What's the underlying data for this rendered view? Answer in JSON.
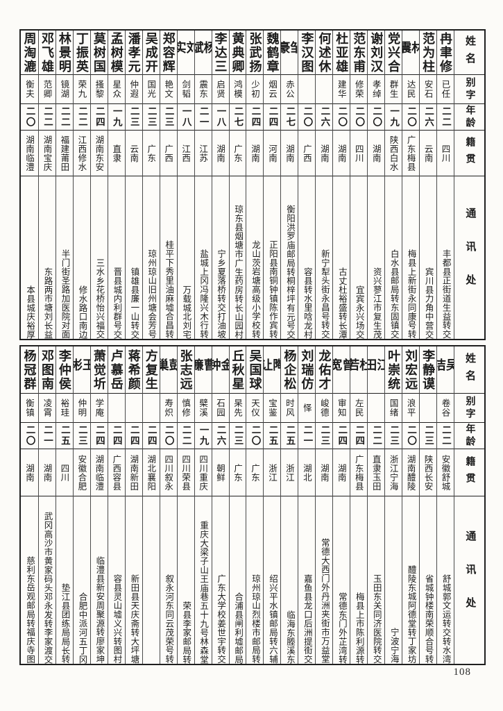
{
  "page": {
    "number": "108"
  },
  "colors": {
    "paper": "#fbfaf7",
    "ink": "#1c1c1c",
    "border": "#1f1f1f"
  },
  "headers": {
    "name": "姓名",
    "courtesy": "别字",
    "age": "年龄",
    "native": "籍贯",
    "address": "通讯处"
  },
  "tables": [
    {
      "entries": [
        {
          "name": "冉聿修",
          "courtesy": "已任",
          "age": "二二",
          "native": "四川",
          "address": "丰都县正街道生益转交"
        },
        {
          "name": "范为柱",
          "courtesy": "安石",
          "age": "二六",
          "native": "云南",
          "address": "宾川县力角中营交"
        },
        {
          "name": "林震",
          "courtesy": "达民",
          "age": "二〇",
          "native": "广东梅县",
          "address": "梅县上新街永同康号转"
        },
        {
          "name": "党兴合",
          "courtesy": "群生",
          "age": "一九",
          "native": "陕西白水",
          "address": "白水县邮局转东固镇交"
        },
        {
          "name": "谢刘汉",
          "courtesy": "孝绰",
          "age": "二〇",
          "native": "湖南",
          "address": "资兴蓼江市复生茂"
        },
        {
          "name": "范东甫",
          "courtesy": "修荣",
          "age": "二〇",
          "native": "四川",
          "address": "宜宾永兴场交"
        },
        {
          "name": "杜亚雄",
          "courtesy": "建华",
          "age": "二〇",
          "native": "湖南",
          "address": "古丈杜裕盛转长潭"
        },
        {
          "name": "何述休",
          "courtesy": "",
          "age": "二六",
          "native": "湖南",
          "address": "新宁犁头街永昌号转交"
        },
        {
          "name": "李汉图",
          "courtesy": "",
          "age": "二〇",
          "native": "广西",
          "address": "容县转水里唅龙村"
        },
        {
          "name": "邹豪",
          "courtesy": "赤公",
          "age": "二七",
          "native": "湖南",
          "address": "衡阳洪罗庙邮局转桐梓坪有元号交"
        },
        {
          "name": "魏鹤章",
          "courtesy": "烟云",
          "age": "二四",
          "native": "河南",
          "address": "正阳县南铜钟镇陈作宾转"
        },
        {
          "name": "张武扬",
          "courtesy": "少初",
          "age": "二四",
          "native": "湖南",
          "address": "龙山茨岩塘高级小学校转"
        },
        {
          "name": "黄典卿",
          "courtesy": "鸿模",
          "age": "二七",
          "native": "广东",
          "address": "琼东县烟塘市广生药房转长山园村"
        },
        {
          "name": "李达三",
          "courtesy": "启贤",
          "age": "一八",
          "native": "湖南",
          "address": "宁乡夏落桥转交打油坡"
        },
        {
          "name": "杨斌",
          "courtesy": "震东",
          "age": "二一",
          "native": "江苏",
          "address": "盐城上冈冯隆兴木行转"
        },
        {
          "name": "刘实",
          "courtesy": "剑韬",
          "age": "一八",
          "native": "江西",
          "address": "万载城北刘宅"
        },
        {
          "name": "郑容辉",
          "courtesy": "艳文",
          "age": "二三",
          "native": "广西",
          "address": "桂平下秀里油麻墟合昌转"
        },
        {
          "name": "吴成开",
          "courtesy": "国光",
          "age": "二三",
          "native": "广东",
          "address": "琼州琼山旧州塘会芳号"
        },
        {
          "name": "潘孝元",
          "courtesy": "仲遐",
          "age": "二三",
          "native": "云南",
          "address": "镇雄县廉一山转交"
        },
        {
          "name": "孟树模",
          "courtesy": "星众",
          "age": "一九",
          "native": "直隶",
          "address": "晋县城内利群号交"
        },
        {
          "name": "莫树国",
          "courtesy": "搔黎",
          "age": "二四",
          "native": "湖南东安",
          "address": "三水乡花桥怡兴福交"
        },
        {
          "name": "丁振英",
          "courtesy": "荣九",
          "age": "二二",
          "native": "江西修水",
          "address": "修水路口南边"
        },
        {
          "name": "林景明",
          "courtesy": "镜湖",
          "age": "二二",
          "native": "福建莆田",
          "address": "半门街圣路加医院对面"
        },
        {
          "name": "邓飞雄",
          "courtesy": "范卿",
          "age": "二二",
          "native": "湖南宝庆",
          "address": "东路两市塘刘长益"
        },
        {
          "name": "周淘漉",
          "courtesy": "衡夫",
          "age": "二〇",
          "native": "湖南临澧",
          "address": "本县城庆裕厚"
        }
      ]
    },
    {
      "entries": [
        {
          "name": "吴洁",
          "courtesy": "卷谷",
          "age": "二二",
          "native": "安徽舒城",
          "address": "舒城郭文运转交转水湾"
        },
        {
          "name": "李静谟",
          "courtesy": "",
          "age": "二三",
          "native": "陕西长安",
          "address": "省城钟楼南荣顺合号转"
        },
        {
          "name": "刘宏远",
          "courtesy": "浪平",
          "age": "二〇",
          "native": "湖南醴陵",
          "address": "醴陵东城阿德堂转丁家坊"
        },
        {
          "name": "叶崇统",
          "courtesy": "国绪",
          "age": "二三",
          "native": "浙江宁海",
          "address": "宁波宁海"
        },
        {
          "name": "江田",
          "courtesy": "",
          "age": "二二",
          "native": "直隶玉田",
          "address": "玉田东关同济医院转交"
        },
        {
          "name": "杜若",
          "courtesy": "左民",
          "age": "二四",
          "native": "广东梅县",
          "address": "梅县上市陈利源转"
        },
        {
          "name": "曾宽",
          "courtesy": "审知",
          "age": "二四",
          "native": "湖南",
          "address": "常德东门外芷湾转"
        },
        {
          "name": "龙佑才",
          "courtesy": "峻德",
          "age": "二三",
          "native": "湖南",
          "address": "常德大西门外丹洲夹街市万益堂"
        },
        {
          "name": "刘瑞仿",
          "courtesy": "怿",
          "age": "二一",
          "native": "湖北",
          "address": "嘉鱼县龙口后洲提街交"
        },
        {
          "name": "杨企松",
          "courtesy": "时风",
          "age": "二五",
          "native": "浙江",
          "address": "临海东塍溪东"
        },
        {
          "name": "陶让",
          "courtesy": "宝鉴",
          "age": "二五",
          "native": "浙江",
          "address": "绍兴平水镇邮局转六辅"
        },
        {
          "name": "吴国球",
          "courtesy": "天仪",
          "age": "二〇",
          "native": "广东",
          "address": "琼州琼山烈楼市邮局转"
        },
        {
          "name": "丘秋星",
          "courtesy": "杲先",
          "age": "二三",
          "native": "广东",
          "address": "合浦县闸利墟邮局"
        },
        {
          "name": "金钟",
          "courtesy": "石园",
          "age": "二六",
          "native": "朝鲜",
          "address": "广东大学校姜世宇转交"
        },
        {
          "name": "曹濂",
          "courtesy": "檗溪",
          "age": "一九",
          "native": "四川重庆",
          "address": "重庆大梁子山王庙巷五十九号林森堂"
        },
        {
          "name": "张志远",
          "courtesy": "慎修",
          "age": "二二",
          "native": "四川荣县",
          "address": "荣县李家邮局转"
        },
        {
          "name": "彭巢",
          "courtesy": "寿炽",
          "age": "二〇",
          "native": "四川叙永",
          "address": "叙永河东同云茂荣号转"
        },
        {
          "name": "方复生",
          "courtesy": "",
          "age": "二四",
          "native": "湖北襄阳",
          "address": ""
        },
        {
          "name": "蒋希颜",
          "courtesy": "",
          "age": "二四",
          "native": "湖南新田",
          "address": "新田县天庆斋转大坪塘"
        },
        {
          "name": "卢慕岳",
          "courtesy": "",
          "age": "二四",
          "native": "广西容县",
          "address": "容县灵山墟义兴转图村"
        },
        {
          "name": "萧觉圻",
          "courtesy": "学庵",
          "age": "二四",
          "native": "湖南临澧",
          "address": "临澧县新安周聚源转廖家坤"
        },
        {
          "name": "王彬",
          "courtesy": "仲明",
          "age": "二三",
          "native": "安徽合肥",
          "address": "合肥中派河五丁冈"
        },
        {
          "name": "李仲侯",
          "courtesy": "裕珪",
          "age": "二五",
          "native": "四川",
          "address": "垫江县团练局局长转"
        },
        {
          "name": "邓图南",
          "courtesy": "凌霄",
          "age": "二一",
          "native": "湖南",
          "address": "武冈高沙市黄家码头邓永发转李家渡交"
        },
        {
          "name": "杨冠群",
          "courtesy": "衡镇",
          "age": "二〇",
          "native": "湖南",
          "address": "慈利东岳观邮局转福庆寺图"
        }
      ]
    }
  ]
}
